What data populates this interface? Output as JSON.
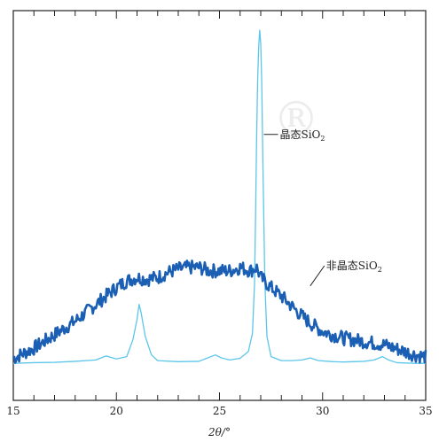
{
  "chart_data": {
    "type": "line",
    "title": "",
    "xlabel": "2θ/°",
    "ylabel": "",
    "xlim": [
      15,
      35
    ],
    "ylim": [
      0,
      100
    ],
    "xticks": [
      15,
      20,
      25,
      30,
      35
    ],
    "grid": false,
    "legend": "none",
    "watermark": "®",
    "colors": {
      "crystalline": "#5cc6ea",
      "amorphous": "#1a5fb4",
      "axis": "#222222"
    },
    "annotations": [
      {
        "text": "晶态SiO",
        "sub": "2",
        "series": "crystalline",
        "x": 27.15,
        "y": 69
      },
      {
        "text": "非晶态SiO",
        "sub": "2",
        "series": "amorphous",
        "x": 29.4,
        "y": 13
      }
    ],
    "series": [
      {
        "key": "crystalline",
        "x": [
          15.0,
          16.0,
          17.0,
          18.0,
          19.0,
          19.5,
          20.0,
          20.5,
          20.8,
          21.0,
          21.1,
          21.2,
          21.4,
          21.7,
          22.0,
          23.0,
          24.0,
          24.5,
          24.8,
          25.1,
          25.5,
          26.0,
          26.4,
          26.6,
          26.7,
          26.75,
          26.8,
          26.85,
          26.9,
          26.95,
          27.0,
          27.05,
          27.1,
          27.2,
          27.3,
          27.5,
          28.0,
          28.5,
          29.0,
          29.4,
          29.8,
          30.5,
          31.0,
          32.0,
          32.5,
          32.9,
          33.2,
          33.6,
          34.0,
          34.5,
          35.0
        ],
        "y": [
          1.0,
          1.2,
          1.3,
          1.6,
          2.0,
          3.2,
          2.3,
          3.0,
          8.0,
          14.0,
          18.5,
          16.0,
          9.0,
          3.5,
          1.8,
          1.5,
          1.6,
          2.8,
          3.5,
          2.6,
          2.0,
          2.5,
          4.5,
          10.0,
          25.0,
          45.0,
          68.0,
          85.0,
          95.0,
          100.0,
          96.0,
          84.0,
          62.0,
          25.0,
          9.0,
          3.0,
          1.8,
          1.8,
          2.0,
          2.6,
          1.8,
          1.5,
          1.4,
          1.6,
          2.0,
          3.0,
          2.0,
          1.2,
          1.1,
          1.0,
          1.0
        ]
      },
      {
        "key": "amorphous",
        "x": [
          15.0,
          15.5,
          16.0,
          16.5,
          17.0,
          17.5,
          18.0,
          18.5,
          19.0,
          19.5,
          20.0,
          20.5,
          21.0,
          21.5,
          22.0,
          22.5,
          23.0,
          23.5,
          24.0,
          24.5,
          25.0,
          25.5,
          26.0,
          26.5,
          26.8,
          27.0,
          27.5,
          28.0,
          28.5,
          29.0,
          29.5,
          30.0,
          30.5,
          31.0,
          31.5,
          32.0,
          32.5,
          33.0,
          33.5,
          34.0,
          34.5,
          35.0
        ],
        "y": [
          2.5,
          4.0,
          5.5,
          7.5,
          9.5,
          11.5,
          13.5,
          16.0,
          18.5,
          21.0,
          23.5,
          25.5,
          26.5,
          26.0,
          26.5,
          28.0,
          29.0,
          29.5,
          29.5,
          28.5,
          28.5,
          28.5,
          29.5,
          28.5,
          29.5,
          26.5,
          23.5,
          21.0,
          18.0,
          15.0,
          12.5,
          10.5,
          9.5,
          8.5,
          8.0,
          7.5,
          7.0,
          6.5,
          5.5,
          4.5,
          3.5,
          3.0
        ]
      }
    ]
  }
}
